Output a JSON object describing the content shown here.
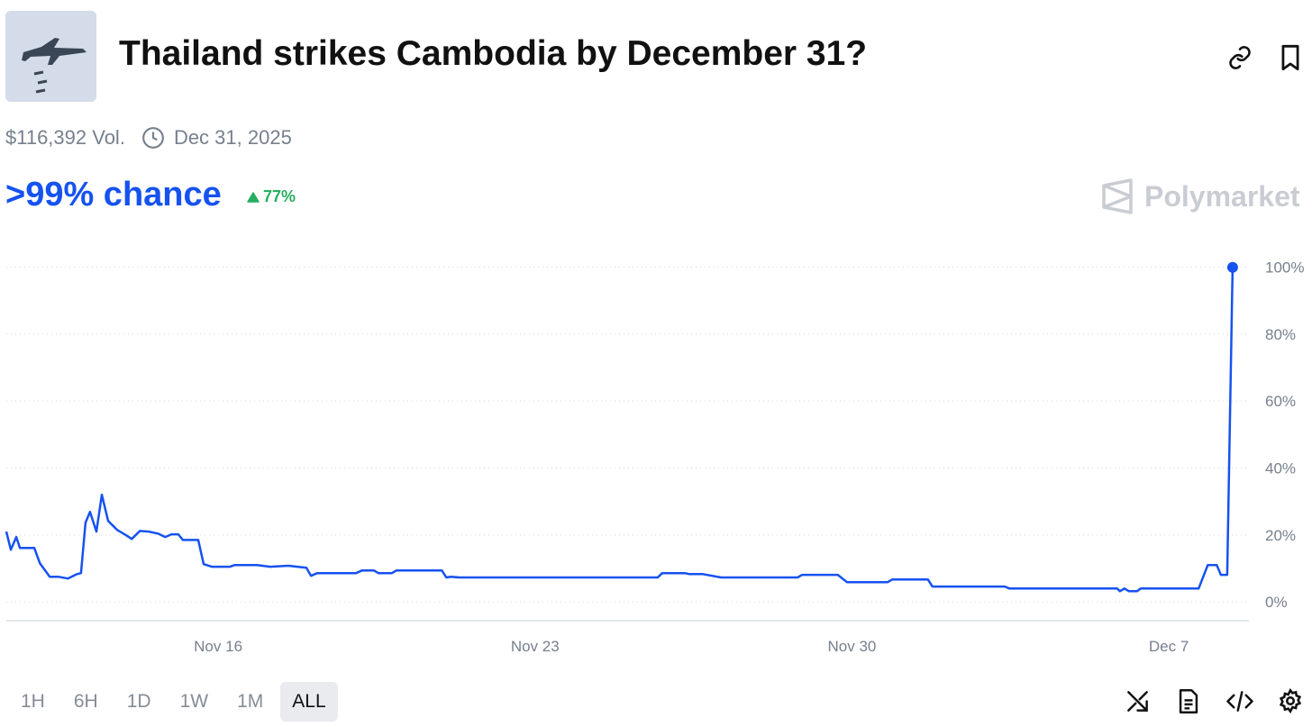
{
  "header": {
    "title": "Thailand strikes Cambodia by December 31?",
    "volume": "$116,392 Vol.",
    "end_date": "Dec 31, 2025",
    "chance": ">99% chance",
    "change": "77%",
    "brand": "Polymarket"
  },
  "chart_data": {
    "type": "line",
    "color": "#1652f0",
    "grid": true,
    "x": [
      11.32,
      11.42,
      11.54,
      11.62,
      11.94,
      12.06,
      12.28,
      12.48,
      12.68,
      12.88,
      12.97,
      13.07,
      13.17,
      13.31,
      13.43,
      13.57,
      13.77,
      13.97,
      14.09,
      14.27,
      14.47,
      14.67,
      14.83,
      14.97,
      15.12,
      15.22,
      15.56,
      15.68,
      15.86,
      16.26,
      16.36,
      16.86,
      17.15,
      17.55,
      17.95,
      18.05,
      18.19,
      19.05,
      19.18,
      19.44,
      19.54,
      19.84,
      19.94,
      20.94,
      21.04,
      21.14,
      21.33,
      25.71,
      25.81,
      26.31,
      26.41,
      26.71,
      27.11,
      28.8,
      28.9,
      29.69,
      29.89,
      30.79,
      30.89,
      31.68,
      31.78,
      33.38,
      33.48,
      35.86,
      35.92,
      36.02,
      36.12,
      36.3,
      36.38,
      37.66,
      37.86,
      38.06,
      38.15,
      38.29,
      38.41
    ],
    "values": [
      21,
      15.6,
      19.4,
      16.1,
      16.1,
      11.6,
      7.5,
      7.5,
      7,
      8.3,
      8.6,
      23.7,
      26.9,
      21,
      32,
      24.2,
      21.5,
      19.9,
      18.8,
      21.2,
      21,
      20.4,
      19.4,
      20.2,
      20.2,
      18.5,
      18.5,
      11.3,
      10.5,
      10.5,
      11,
      11,
      10.5,
      10.8,
      10.2,
      7.8,
      8.6,
      8.6,
      9.4,
      9.4,
      8.6,
      8.6,
      9.4,
      9.4,
      7.3,
      7.5,
      7.3,
      7.3,
      8.6,
      8.6,
      8.3,
      8.3,
      7.3,
      7.3,
      8.1,
      8.1,
      5.9,
      5.9,
      6.7,
      6.7,
      4.6,
      4.6,
      4,
      4,
      3.2,
      4,
      3.2,
      3.2,
      4,
      4,
      11,
      11,
      8.1,
      8.1,
      99.9
    ],
    "xlim": [
      11.32,
      38.77
    ],
    "xticks": [
      {
        "value": 16,
        "label": "Nov 16"
      },
      {
        "value": 23,
        "label": "Nov 23"
      },
      {
        "value": 30,
        "label": "Nov 30"
      },
      {
        "value": 37,
        "label": "Dec 7"
      }
    ],
    "ylim": [
      -5.6,
      102
    ],
    "yticks": [
      {
        "value": 0,
        "label": "0%"
      },
      {
        "value": 20,
        "label": "20%"
      },
      {
        "value": 40,
        "label": "40%"
      },
      {
        "value": 60,
        "label": "60%"
      },
      {
        "value": 80,
        "label": "80%"
      },
      {
        "value": 100,
        "label": "100%"
      }
    ]
  },
  "range_buttons": [
    "1H",
    "6H",
    "1D",
    "1W",
    "1M",
    "ALL"
  ],
  "selected_range": "ALL"
}
